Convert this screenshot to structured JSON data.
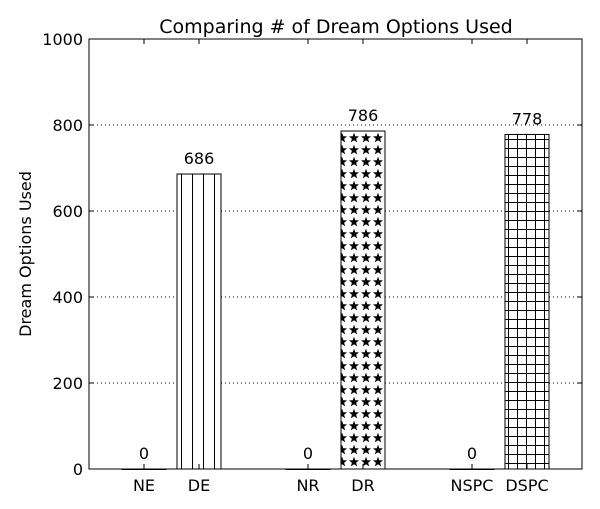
{
  "chart_data": {
    "type": "bar",
    "title": "Comparing # of Dream Options Used",
    "xlabel": "",
    "ylabel": "Dream Options Used",
    "ylim": [
      0,
      1000
    ],
    "yticks": [
      0,
      200,
      400,
      600,
      800,
      1000
    ],
    "grid": "horizontal dotted",
    "categories": [
      "NE",
      "DE",
      "NR",
      "DR",
      "NSPC",
      "DSPC"
    ],
    "values": [
      0,
      686,
      0,
      786,
      0,
      778
    ],
    "data_labels": [
      "0",
      "686",
      "0",
      "786",
      "0",
      "778"
    ],
    "bar_patterns": [
      "none",
      "vertical-lines",
      "none",
      "stars",
      "none",
      "grid"
    ],
    "bar_fill": "#ffffff",
    "bar_edge": "#000000"
  }
}
